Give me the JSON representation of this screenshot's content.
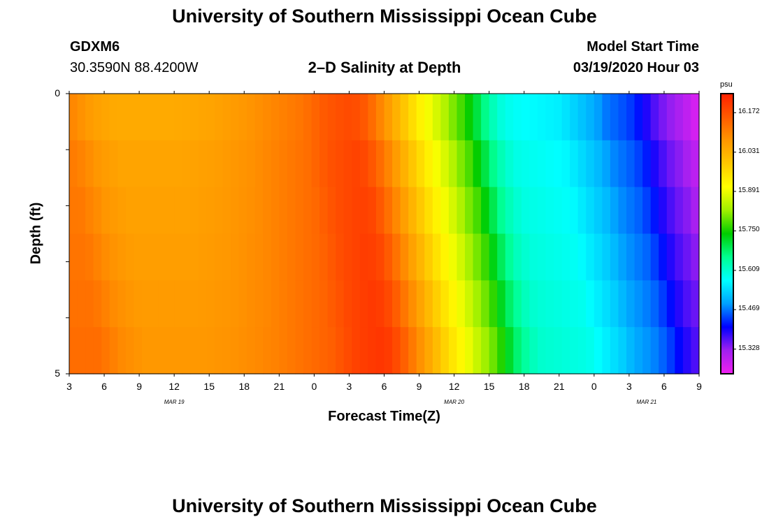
{
  "header": {
    "title": "University of Southern Mississippi Ocean Cube",
    "station": "GDXM6",
    "coords": "30.3590N 88.4200W",
    "subtitle": "2–D Salinity at Depth",
    "model_start_label": "Model Start Time",
    "model_start_value": "03/19/2020 Hour 03"
  },
  "footer": {
    "title": "University of Southern Mississippi Ocean Cube"
  },
  "chart_data": {
    "type": "heatmap",
    "xlabel": "Forecast Time(Z)",
    "ylabel": "Depth (ft)",
    "x_tick_labels": [
      "3",
      "6",
      "9",
      "12",
      "15",
      "18",
      "21",
      "0",
      "3",
      "6",
      "9",
      "12",
      "15",
      "18",
      "21",
      "0",
      "3",
      "6",
      "9"
    ],
    "x_date_labels": [
      "MAR 19",
      "MAR 20",
      "MAR 21"
    ],
    "x_range_hours": [
      0,
      54
    ],
    "y_tick_labels": [
      "0",
      "5"
    ],
    "ylim": [
      0,
      5
    ],
    "depth_layers": [
      0.25,
      1.0,
      2.0,
      3.0,
      4.0,
      4.75
    ],
    "salinity_profile": {
      "hours": [
        0,
        1,
        2,
        4,
        6,
        9,
        12,
        15,
        18,
        20,
        22,
        24,
        25,
        26,
        27,
        28,
        30,
        32,
        33,
        34,
        35,
        36,
        37,
        38,
        40,
        42,
        44,
        45,
        46,
        48,
        49,
        50,
        51,
        52,
        53,
        54
      ],
      "values_surface": [
        16.1,
        16.08,
        16.06,
        16.04,
        16.04,
        16.04,
        16.05,
        16.07,
        16.1,
        16.12,
        16.16,
        16.18,
        16.17,
        16.13,
        16.08,
        16.03,
        15.93,
        15.85,
        15.8,
        15.76,
        15.7,
        15.64,
        15.6,
        15.58,
        15.57,
        15.56,
        15.52,
        15.5,
        15.47,
        15.44,
        15.41,
        15.37,
        15.34,
        15.32,
        15.29,
        15.26
      ],
      "depth_offsets": [
        0.0,
        0.01,
        0.015,
        0.02,
        0.025,
        0.03
      ],
      "lag_hours": [
        0,
        0.5,
        1.0,
        1.5,
        2.0,
        2.5
      ]
    },
    "colorbar": {
      "unit": "psu",
      "min": 15.24,
      "max": 16.24,
      "tick_labels": [
        "16.172",
        "16.031",
        "15.891",
        "15.750",
        "15.609",
        "15.469",
        "15.328"
      ],
      "tick_values": [
        16.172,
        16.031,
        15.891,
        15.75,
        15.609,
        15.469,
        15.328
      ],
      "colors": [
        "#f020f0",
        "#a020f0",
        "#0000ff",
        "#00a0ff",
        "#00ffff",
        "#00ff90",
        "#00cc00",
        "#a0f000",
        "#ffff00",
        "#ffc800",
        "#ff9600",
        "#ff5a00",
        "#ff2000"
      ]
    }
  }
}
